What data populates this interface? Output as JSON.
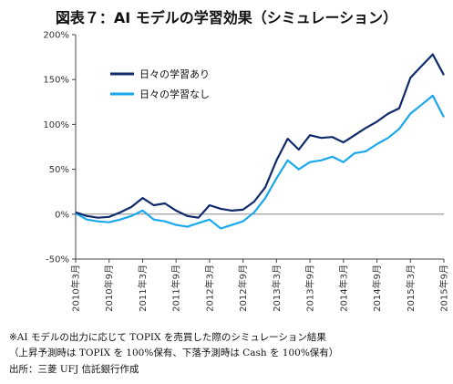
{
  "title": "図表７：AI モデルの学習効果（シミュレーション）",
  "notes": [
    "※AI モデルの出力に応じて TOPIX を売買した際のシミュレーション結果",
    "（上昇予測時は TOPIX を 100%保有、下落予測時は Cash を 100%保有）",
    "出所：三菱 UFJ 信託銀行作成"
  ],
  "colors": {
    "series1": "#0f2a6b",
    "series2": "#19a8ec"
  },
  "chart_data": {
    "type": "line",
    "ylim": [
      -50,
      200
    ],
    "yticks": [
      -50,
      0,
      50,
      100,
      150,
      200
    ],
    "ytick_labels": [
      "-50%",
      "0%",
      "50%",
      "100%",
      "150%",
      "200%"
    ],
    "xticks": [
      "2010年3月",
      "2010年9月",
      "2011年3月",
      "2011年9月",
      "2012年3月",
      "2012年9月",
      "2013年3月",
      "2013年9月",
      "2014年3月",
      "2014年9月",
      "2015年3月",
      "2015年9月"
    ],
    "grid": false,
    "legend": "top-left",
    "x_time": [
      "2010-03",
      "2010-05",
      "2010-07",
      "2010-09",
      "2010-11",
      "2011-01",
      "2011-03",
      "2011-05",
      "2011-07",
      "2011-09",
      "2011-11",
      "2012-01",
      "2012-03",
      "2012-05",
      "2012-07",
      "2012-09",
      "2012-11",
      "2013-01",
      "2013-03",
      "2013-05",
      "2013-07",
      "2013-09",
      "2013-11",
      "2014-01",
      "2014-03",
      "2014-05",
      "2014-07",
      "2014-09",
      "2014-11",
      "2015-01",
      "2015-03",
      "2015-05",
      "2015-07",
      "2015-09"
    ],
    "series": [
      {
        "name": "日々の学習あり",
        "values": [
          2,
          -2,
          -4,
          -3,
          2,
          8,
          18,
          10,
          12,
          4,
          -2,
          -4,
          10,
          6,
          4,
          5,
          14,
          30,
          60,
          84,
          72,
          88,
          85,
          86,
          80,
          88,
          96,
          103,
          112,
          118,
          152,
          165,
          178,
          155
        ]
      },
      {
        "name": "日々の学習なし",
        "values": [
          1,
          -6,
          -8,
          -9,
          -6,
          -2,
          4,
          -6,
          -8,
          -12,
          -14,
          -10,
          -6,
          -16,
          -12,
          -8,
          2,
          18,
          40,
          60,
          50,
          58,
          60,
          64,
          58,
          68,
          70,
          78,
          85,
          95,
          112,
          122,
          132,
          108
        ]
      }
    ]
  }
}
